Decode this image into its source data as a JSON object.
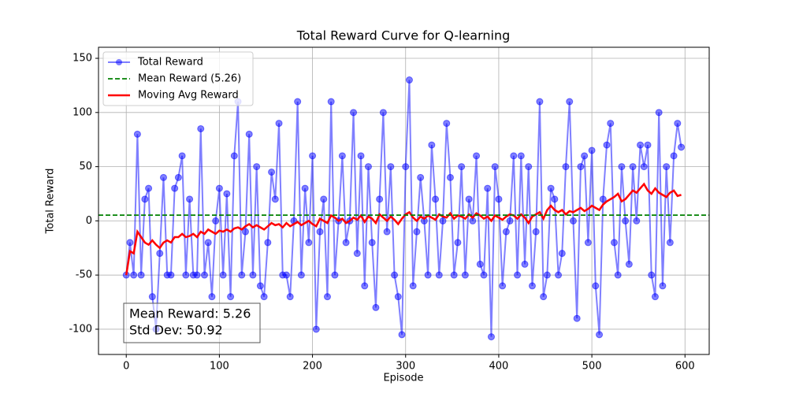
{
  "chart_data": {
    "type": "line",
    "title": "Total Reward Curve for Q-learning",
    "xlabel": "Episode",
    "ylabel": "Total Reward",
    "x": [
      0,
      4,
      8,
      12,
      16,
      20,
      24,
      28,
      32,
      36,
      40,
      44,
      48,
      52,
      56,
      60,
      64,
      68,
      72,
      76,
      80,
      84,
      88,
      92,
      96,
      100,
      104,
      108,
      112,
      116,
      120,
      124,
      128,
      132,
      136,
      140,
      144,
      148,
      152,
      156,
      160,
      164,
      168,
      172,
      176,
      180,
      184,
      188,
      192,
      196,
      200,
      204,
      208,
      212,
      216,
      220,
      224,
      228,
      232,
      236,
      240,
      244,
      248,
      252,
      256,
      260,
      264,
      268,
      272,
      276,
      280,
      284,
      288,
      292,
      296,
      300,
      304,
      308,
      312,
      316,
      320,
      324,
      328,
      332,
      336,
      340,
      344,
      348,
      352,
      356,
      360,
      364,
      368,
      372,
      376,
      380,
      384,
      388,
      392,
      396,
      400,
      404,
      408,
      412,
      416,
      420,
      424,
      428,
      432,
      436,
      440,
      444,
      448,
      452,
      456,
      460,
      464,
      468,
      472,
      476,
      480,
      484,
      488,
      492,
      496,
      500,
      504,
      508,
      512,
      516,
      520,
      524,
      528,
      532,
      536,
      540,
      544,
      548,
      552,
      556,
      560,
      564,
      568,
      572,
      576,
      580,
      584,
      588,
      592,
      596
    ],
    "series": [
      {
        "name": "Total Reward",
        "color": "#0000ff",
        "values": [
          -50,
          -20,
          -50,
          80,
          -50,
          20,
          30,
          -70,
          -100,
          -30,
          40,
          -50,
          -50,
          30,
          40,
          60,
          -50,
          20,
          -50,
          -50,
          85,
          -50,
          -20,
          -70,
          0,
          30,
          -50,
          25,
          -70,
          60,
          110,
          -50,
          -10,
          80,
          -50,
          50,
          -60,
          -70,
          -20,
          45,
          20,
          90,
          -50,
          -50,
          -70,
          0,
          110,
          -50,
          30,
          -20,
          60,
          -100,
          -10,
          20,
          -70,
          110,
          -50,
          0,
          60,
          -20,
          0,
          100,
          -30,
          60,
          -60,
          50,
          -20,
          -80,
          20,
          100,
          -10,
          50,
          -50,
          -70,
          -105,
          50,
          130,
          -60,
          -10,
          40,
          0,
          -50,
          70,
          20,
          -50,
          0,
          90,
          40,
          -50,
          -20,
          50,
          -50,
          20,
          0,
          60,
          -40,
          -50,
          30,
          -107,
          50,
          20,
          -60,
          -10,
          0,
          60,
          -50,
          60,
          -40,
          50,
          -60,
          -10,
          110,
          -70,
          -50,
          30,
          20,
          -50,
          -30,
          50,
          110,
          0,
          -90,
          50,
          60,
          -20,
          65,
          -60,
          -105,
          20,
          70,
          90,
          -20,
          -50,
          50,
          0,
          -40,
          50,
          0,
          70,
          50,
          70,
          -50,
          -70,
          100,
          -60,
          50,
          -20,
          60,
          90,
          68
        ]
      },
      {
        "name": "Moving Avg Reward",
        "color": "#ff0000",
        "values": [
          -50,
          -28,
          -30,
          -10,
          -15,
          -20,
          -22,
          -18,
          -22,
          -25,
          -20,
          -18,
          -20,
          -15,
          -15,
          -12,
          -15,
          -14,
          -12,
          -15,
          -10,
          -12,
          -8,
          -10,
          -12,
          -9,
          -10,
          -8,
          -10,
          -7,
          -6,
          -8,
          -5,
          -3,
          -6,
          -4,
          -6,
          -8,
          -5,
          -2,
          -4,
          -3,
          -6,
          -2,
          -5,
          -3,
          -1,
          -4,
          -2,
          0,
          -3,
          -5,
          2,
          0,
          -2,
          5,
          3,
          0,
          2,
          -2,
          0,
          3,
          1,
          5,
          -1,
          4,
          2,
          -2,
          6,
          3,
          0,
          4,
          1,
          -3,
          2,
          6,
          8,
          3,
          0,
          4,
          2,
          5,
          3,
          1,
          6,
          4,
          3,
          7,
          2,
          5,
          4,
          2,
          6,
          3,
          7,
          5,
          2,
          4,
          0,
          5,
          3,
          1,
          4,
          6,
          5,
          2,
          6,
          3,
          -2,
          4,
          6,
          8,
          2,
          10,
          14,
          10,
          8,
          10,
          6,
          9,
          8,
          10,
          12,
          9,
          11,
          14,
          12,
          10,
          15,
          18,
          20,
          22,
          25,
          18,
          20,
          24,
          28,
          26,
          30,
          34,
          28,
          25,
          30,
          26,
          24,
          22,
          26,
          28,
          23,
          24
        ]
      }
    ],
    "mean_line": {
      "name": "Mean Reward (5.26)",
      "color": "#008000",
      "value": 5.26
    },
    "stats_box": [
      "Mean Reward: 5.26",
      "Std Dev: 50.92"
    ],
    "xlim": [
      -29.8,
      626
    ],
    "ylim": [
      -123.3,
      160.2
    ],
    "xticks": [
      0,
      100,
      200,
      300,
      400,
      500,
      600
    ],
    "yticks": [
      -100,
      -50,
      0,
      50,
      100,
      150
    ],
    "grid": true,
    "legend": "upper-left"
  }
}
